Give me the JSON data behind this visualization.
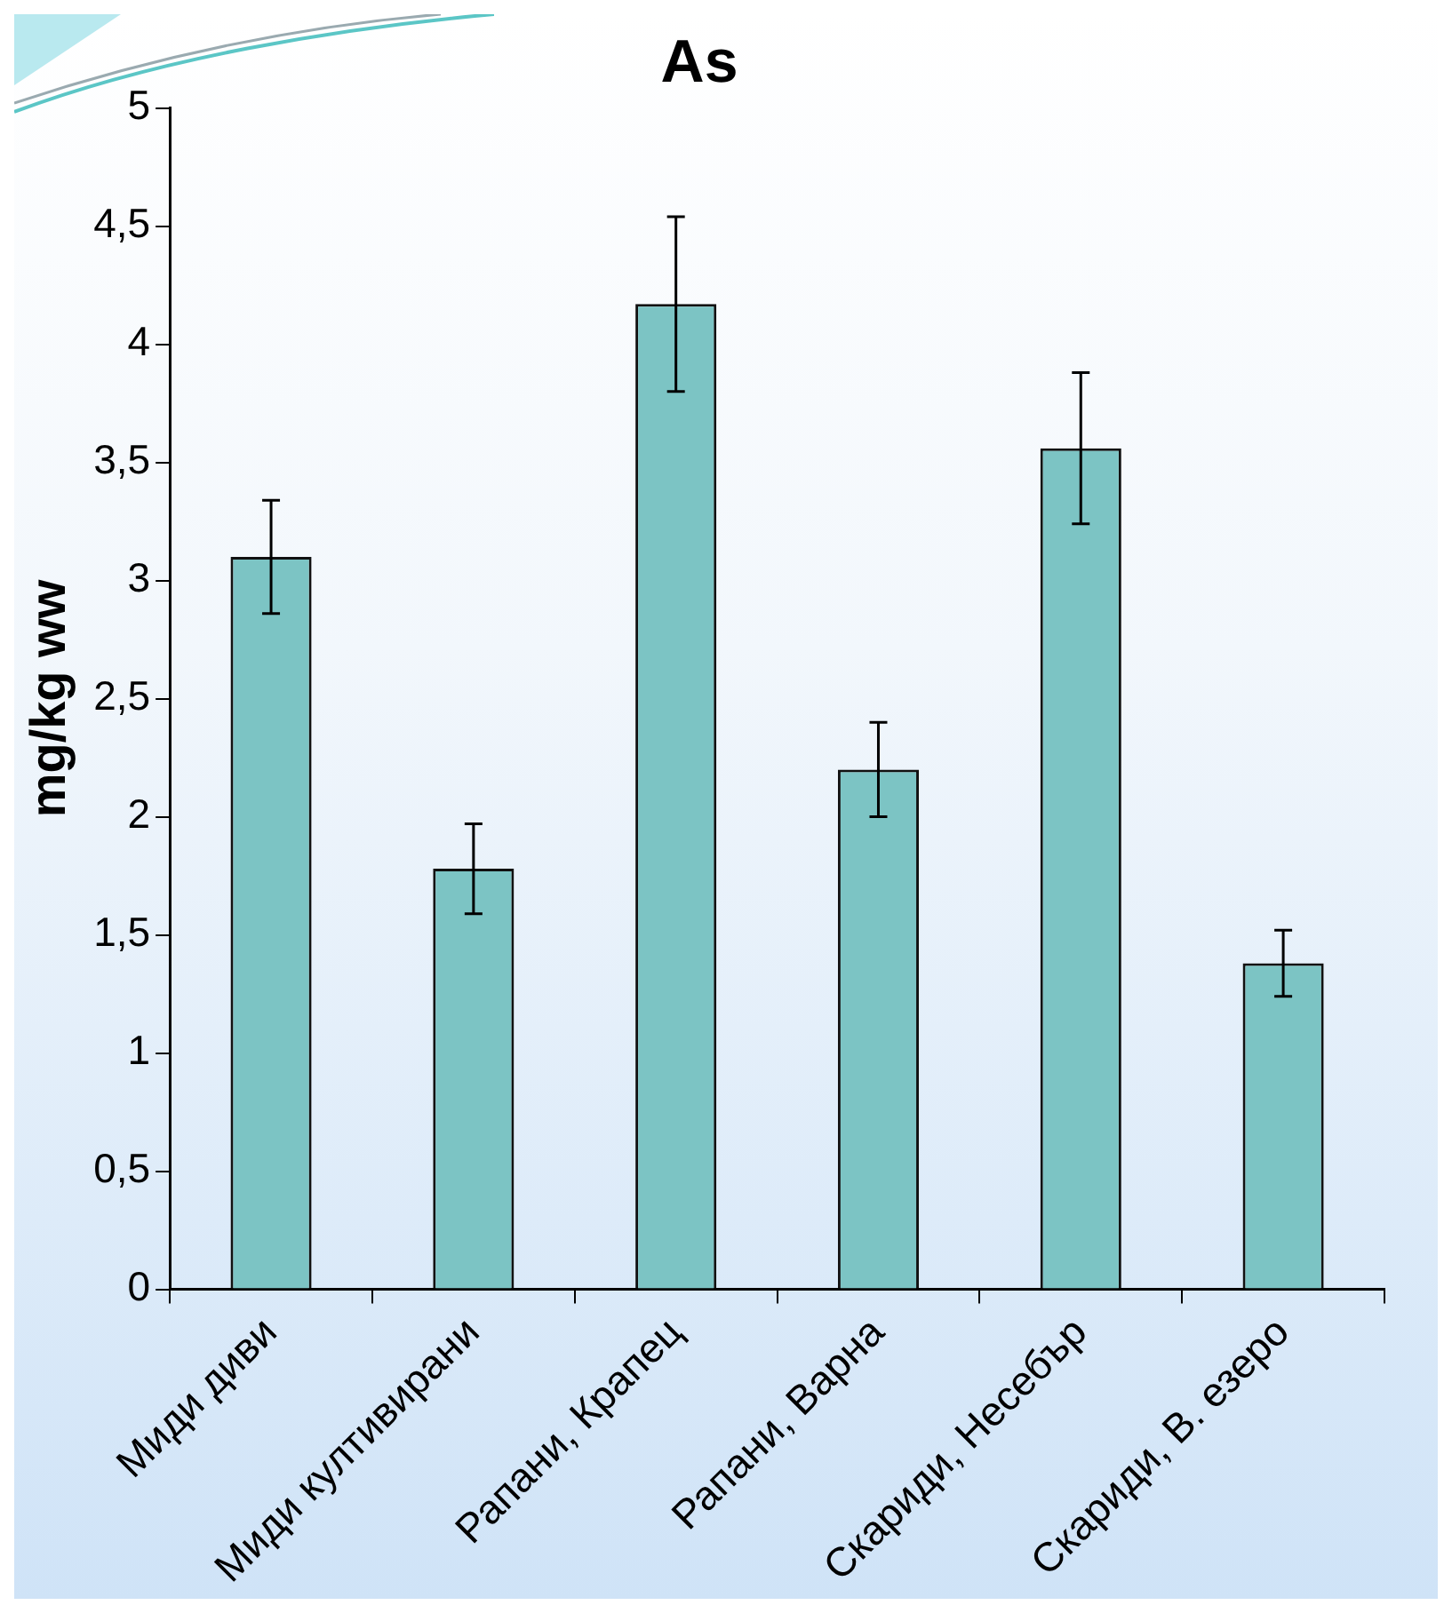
{
  "chart_data": {
    "type": "bar",
    "title": "As",
    "ylabel": "mg/kg ww",
    "categories": [
      "Миди диви",
      "Миди култивирани",
      "Рапани, Крапец",
      "Рапани, Варна",
      "Скариди, Несебър",
      "Скариди, В. езеро"
    ],
    "values": [
      3.1,
      1.78,
      4.17,
      2.2,
      3.56,
      1.38
    ],
    "errors": [
      0.24,
      0.19,
      0.37,
      0.2,
      0.32,
      0.14
    ],
    "color": "#7cc4c4",
    "ylim": [
      0,
      5
    ],
    "yticks": [
      0,
      {
        "value": 0.5,
        "label": "0,5"
      },
      1,
      {
        "value": 1.5,
        "label": "1,5"
      },
      2,
      {
        "value": 2.5,
        "label": "2,5"
      },
      3,
      {
        "value": 3.5,
        "label": "3,5"
      },
      4,
      {
        "value": 4.5,
        "label": "4,5"
      },
      5
    ],
    "grid": false,
    "legend": false
  }
}
